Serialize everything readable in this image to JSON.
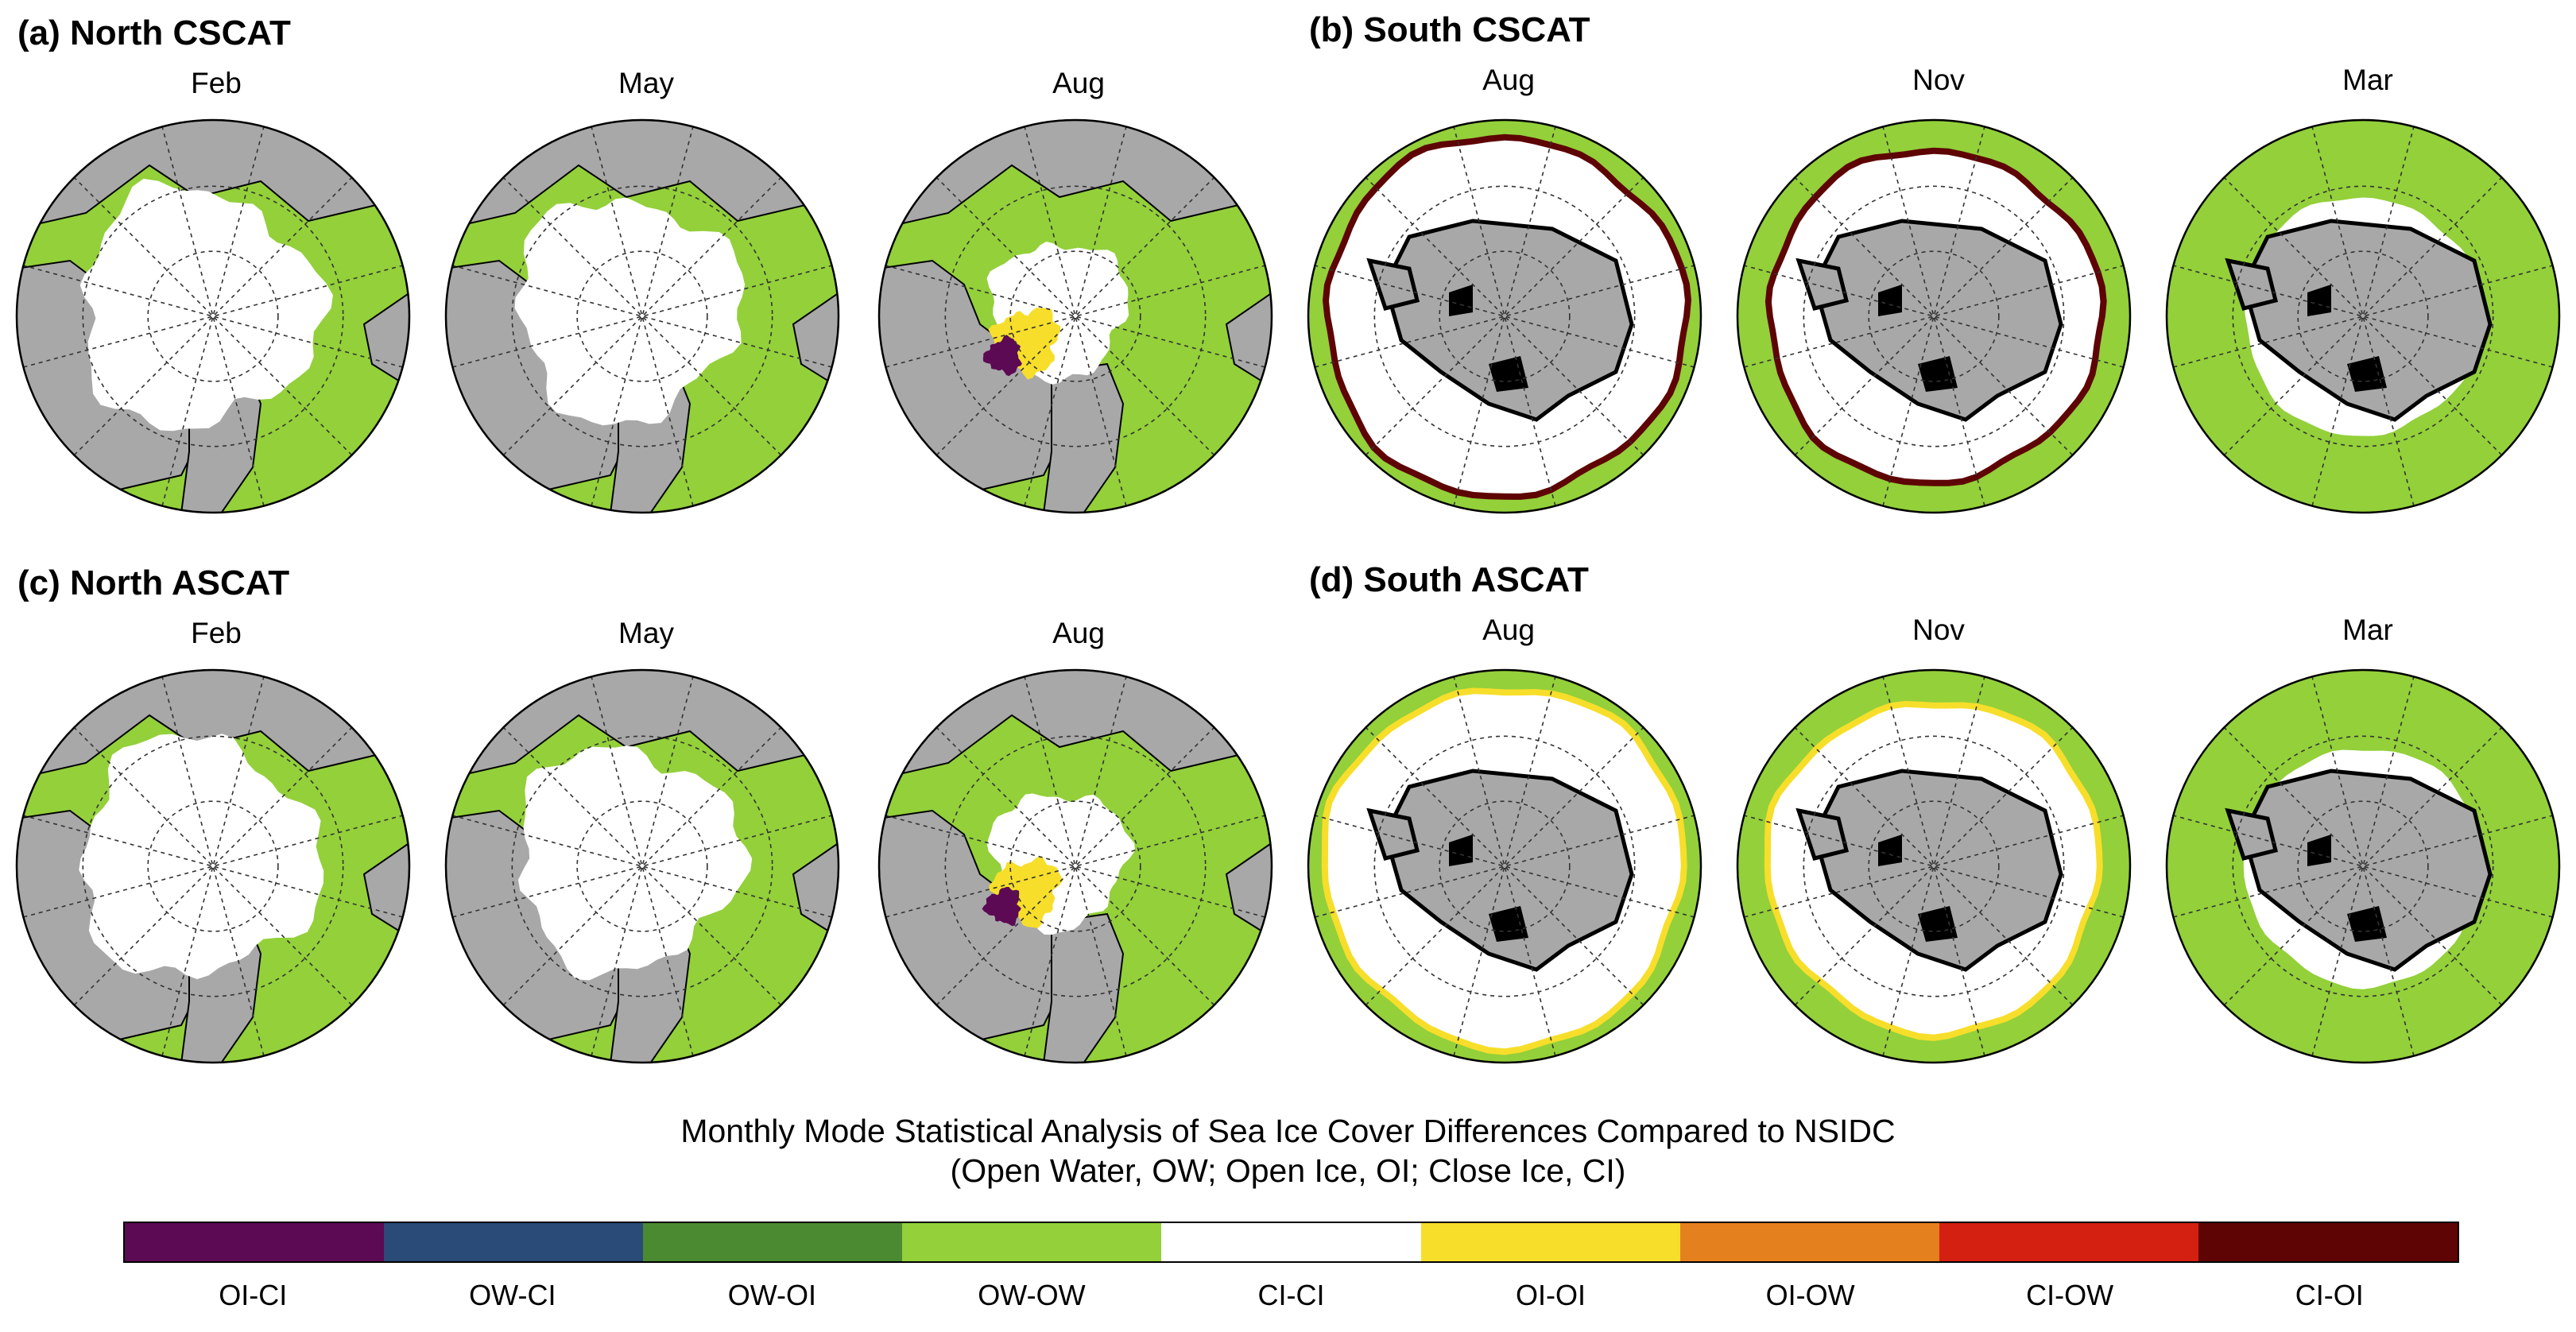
{
  "panels": [
    {
      "title": "(a) North CSCAT",
      "hemisphere": "north",
      "months": [
        "Feb",
        "May",
        "Aug"
      ]
    },
    {
      "title": "(b) South CSCAT",
      "hemisphere": "south",
      "months": [
        "Aug",
        "Nov",
        "Mar"
      ]
    },
    {
      "title": "(c) North ASCAT",
      "hemisphere": "north",
      "months": [
        "Feb",
        "May",
        "Aug"
      ]
    },
    {
      "title": "(d) South ASCAT",
      "hemisphere": "south",
      "months": [
        "Aug",
        "Nov",
        "Mar"
      ]
    }
  ],
  "caption": {
    "line1": "Monthly Mode Statistical Analysis of Sea Ice Cover Differences Compared to NSIDC",
    "line2": "(Open Water, OW; Open Ice, OI; Close Ice, CI)"
  },
  "colorbar": {
    "categories": [
      {
        "label": "OI-CI",
        "color": "#5c0a54"
      },
      {
        "label": "OW-CI",
        "color": "#2a4a78"
      },
      {
        "label": "OW-OI",
        "color": "#4c8a32"
      },
      {
        "label": "OW-OW",
        "color": "#93d03a"
      },
      {
        "label": "CI-CI",
        "color": "#ffffff"
      },
      {
        "label": "OI-OI",
        "color": "#f7de2a"
      },
      {
        "label": "OI-OW",
        "color": "#e5801f"
      },
      {
        "label": "CI-OW",
        "color": "#d42010"
      },
      {
        "label": "CI-OI",
        "color": "#5e0404"
      }
    ]
  },
  "colors": {
    "land": "#a8a8a8",
    "ice_shelf": "#000000",
    "ocean_ow": "#93d03a",
    "ice_ci": "#ffffff",
    "oi_oi": "#f7de2a",
    "ci_oi": "#5e0404",
    "oi_ci": "#5c0a54"
  }
}
